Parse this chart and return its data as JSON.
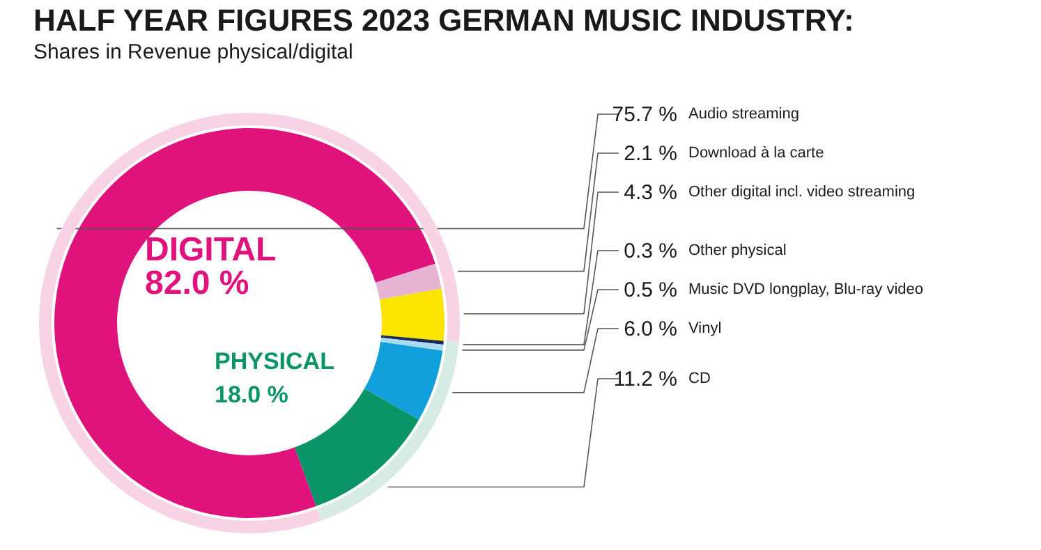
{
  "chart_data": [
    {
      "type": "donut",
      "title": "HALF YEAR FIGURES 2023 GERMAN MUSIC INDUSTRY:",
      "subtitle": "Shares in Revenue physical/digital",
      "categories": [
        "Audio streaming",
        "Download à la carte",
        "Other digital incl. video streaming",
        "Other physical",
        "Music DVD longplay, Blu-ray video",
        "Vinyl",
        "CD"
      ],
      "values": [
        75.7,
        2.1,
        4.3,
        0.3,
        0.5,
        6.0,
        11.2
      ],
      "value_labels": [
        "75.7 %",
        "2.1 %",
        "4.3 %",
        "0.3 %",
        "0.5 %",
        "6.0 %",
        "11.2 %"
      ],
      "colors": [
        "#e0137c",
        "#e6b3d3",
        "#fbe500",
        "#1c2a52",
        "#a9dcf2",
        "#12a0dc",
        "#0a9467"
      ]
    },
    {
      "type": "donut",
      "categories": [
        "DIGITAL",
        "PHYSICAL"
      ],
      "values": [
        82.0,
        18.0
      ],
      "value_labels": [
        "82.0 %",
        "18.0 %"
      ],
      "colors": [
        "#f8d3e5",
        "#d6ebe3"
      ]
    }
  ]
}
